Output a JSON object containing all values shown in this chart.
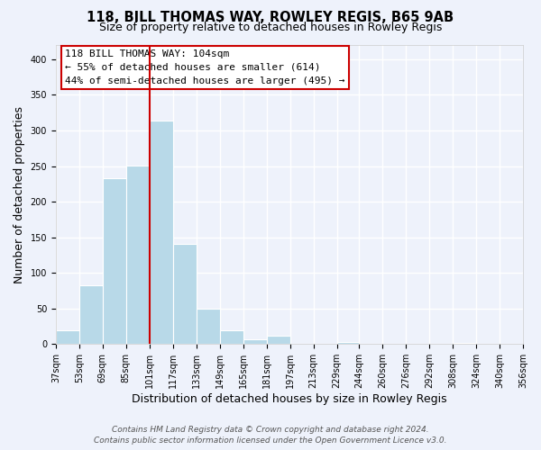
{
  "title": "118, BILL THOMAS WAY, ROWLEY REGIS, B65 9AB",
  "subtitle": "Size of property relative to detached houses in Rowley Regis",
  "xlabel": "Distribution of detached houses by size in Rowley Regis",
  "ylabel": "Number of detached properties",
  "bar_edges": [
    37,
    53,
    69,
    85,
    101,
    117,
    133,
    149,
    165,
    181,
    197,
    213,
    229,
    244,
    260,
    276,
    292,
    308,
    324,
    340,
    356
  ],
  "bar_heights": [
    19,
    83,
    233,
    251,
    314,
    141,
    50,
    20,
    7,
    12,
    0,
    0,
    3,
    0,
    0,
    0,
    0,
    2,
    0,
    0
  ],
  "bar_color": "#b8d9e8",
  "highlight_line_x": 101,
  "highlight_line_color": "#cc0000",
  "annotation_title": "118 BILL THOMAS WAY: 104sqm",
  "annotation_line1": "← 55% of detached houses are smaller (614)",
  "annotation_line2": "44% of semi-detached houses are larger (495) →",
  "annotation_box_facecolor": "#ffffff",
  "annotation_box_edgecolor": "#cc0000",
  "ylim": [
    0,
    420
  ],
  "xlim": [
    37,
    356
  ],
  "yticks": [
    0,
    50,
    100,
    150,
    200,
    250,
    300,
    350,
    400
  ],
  "tick_labels": [
    "37sqm",
    "53sqm",
    "69sqm",
    "85sqm",
    "101sqm",
    "117sqm",
    "133sqm",
    "149sqm",
    "165sqm",
    "181sqm",
    "197sqm",
    "213sqm",
    "229sqm",
    "244sqm",
    "260sqm",
    "276sqm",
    "292sqm",
    "308sqm",
    "324sqm",
    "340sqm",
    "356sqm"
  ],
  "footer_line1": "Contains HM Land Registry data © Crown copyright and database right 2024.",
  "footer_line2": "Contains public sector information licensed under the Open Government Licence v3.0.",
  "background_color": "#eef2fb",
  "grid_color": "#ffffff",
  "title_fontsize": 10.5,
  "subtitle_fontsize": 9,
  "axis_label_fontsize": 9,
  "tick_fontsize": 7,
  "footer_fontsize": 6.5,
  "annotation_fontsize": 8
}
